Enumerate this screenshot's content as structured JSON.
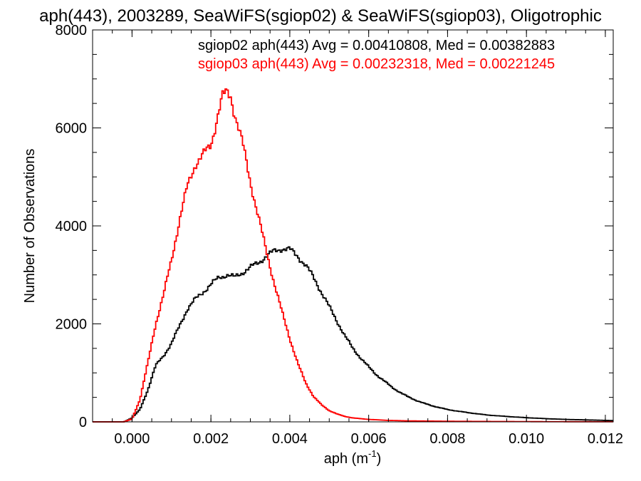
{
  "chart_data": {
    "type": "line",
    "title": "aph(443), 2003289, SeaWiFS(sgiop02) & SeaWiFS(sgiop03), Oligotrophic",
    "xlabel": "aph (m",
    "xlabel_exp": "-1",
    "xlabel_tail": ")",
    "ylabel": "Number of Observations",
    "xlim": [
      -0.001,
      0.0122
    ],
    "ylim": [
      0,
      8000
    ],
    "xticks": [
      0.0,
      0.002,
      0.004,
      0.006,
      0.008,
      0.01,
      0.012
    ],
    "xtick_labels": [
      "0.000",
      "0.002",
      "0.004",
      "0.006",
      "0.008",
      "0.010",
      "0.012"
    ],
    "yticks": [
      0,
      2000,
      4000,
      6000,
      8000
    ],
    "ytick_labels": [
      "0",
      "2000",
      "4000",
      "6000",
      "8000"
    ],
    "grid": false,
    "legend_placement": "top-right",
    "series": [
      {
        "name": "sgiop02",
        "color": "#000000",
        "annotation": "sgiop02 aph(443) Avg = 0.00410808, Med = 0.00382883",
        "points": [
          [
            -0.001,
            0
          ],
          [
            -0.0002,
            0
          ],
          [
            0.0,
            80
          ],
          [
            0.0002,
            250
          ],
          [
            0.0004,
            650
          ],
          [
            0.0006,
            1150
          ],
          [
            0.0008,
            1350
          ],
          [
            0.001,
            1600
          ],
          [
            0.0012,
            1950
          ],
          [
            0.0014,
            2300
          ],
          [
            0.0016,
            2500
          ],
          [
            0.0018,
            2650
          ],
          [
            0.002,
            2800
          ],
          [
            0.0022,
            2950
          ],
          [
            0.0024,
            3000
          ],
          [
            0.0026,
            2950
          ],
          [
            0.0028,
            3050
          ],
          [
            0.003,
            3150
          ],
          [
            0.0032,
            3250
          ],
          [
            0.0034,
            3380
          ],
          [
            0.0036,
            3480
          ],
          [
            0.0038,
            3540
          ],
          [
            0.004,
            3520
          ],
          [
            0.0042,
            3380
          ],
          [
            0.0044,
            3200
          ],
          [
            0.0046,
            2950
          ],
          [
            0.0048,
            2650
          ],
          [
            0.005,
            2350
          ],
          [
            0.0052,
            2050
          ],
          [
            0.0054,
            1750
          ],
          [
            0.0056,
            1500
          ],
          [
            0.0058,
            1300
          ],
          [
            0.006,
            1120
          ],
          [
            0.0062,
            960
          ],
          [
            0.0064,
            830
          ],
          [
            0.0066,
            700
          ],
          [
            0.0068,
            600
          ],
          [
            0.007,
            510
          ],
          [
            0.0072,
            440
          ],
          [
            0.0074,
            380
          ],
          [
            0.0076,
            330
          ],
          [
            0.0078,
            290
          ],
          [
            0.008,
            250
          ],
          [
            0.0085,
            190
          ],
          [
            0.009,
            140
          ],
          [
            0.0095,
            110
          ],
          [
            0.01,
            85
          ],
          [
            0.0105,
            65
          ],
          [
            0.011,
            50
          ],
          [
            0.0115,
            40
          ],
          [
            0.012,
            30
          ],
          [
            0.0122,
            25
          ]
        ]
      },
      {
        "name": "sgiop03",
        "color": "#ff0000",
        "annotation": "sgiop03 aph(443) Avg = 0.00232318, Med = 0.00221245",
        "points": [
          [
            -0.001,
            0
          ],
          [
            -0.0002,
            0
          ],
          [
            0.0,
            60
          ],
          [
            0.0002,
            450
          ],
          [
            0.0004,
            1200
          ],
          [
            0.0006,
            2000
          ],
          [
            0.0008,
            2600
          ],
          [
            0.001,
            3300
          ],
          [
            0.0012,
            4100
          ],
          [
            0.0014,
            4800
          ],
          [
            0.0016,
            5250
          ],
          [
            0.0018,
            5450
          ],
          [
            0.002,
            5650
          ],
          [
            0.0022,
            6350
          ],
          [
            0.0023,
            6650
          ],
          [
            0.0024,
            6720
          ],
          [
            0.0025,
            6650
          ],
          [
            0.0026,
            6300
          ],
          [
            0.0028,
            5700
          ],
          [
            0.003,
            4900
          ],
          [
            0.0032,
            4200
          ],
          [
            0.0034,
            3500
          ],
          [
            0.0036,
            2850
          ],
          [
            0.0038,
            2250
          ],
          [
            0.004,
            1700
          ],
          [
            0.0042,
            1200
          ],
          [
            0.0044,
            800
          ],
          [
            0.0046,
            520
          ],
          [
            0.0048,
            350
          ],
          [
            0.005,
            230
          ],
          [
            0.0052,
            160
          ],
          [
            0.0054,
            110
          ],
          [
            0.0056,
            80
          ],
          [
            0.006,
            50
          ],
          [
            0.0065,
            30
          ],
          [
            0.007,
            20
          ],
          [
            0.008,
            12
          ],
          [
            0.009,
            8
          ],
          [
            0.01,
            5
          ],
          [
            0.011,
            3
          ],
          [
            0.012,
            2
          ],
          [
            0.0122,
            2
          ]
        ]
      }
    ]
  }
}
